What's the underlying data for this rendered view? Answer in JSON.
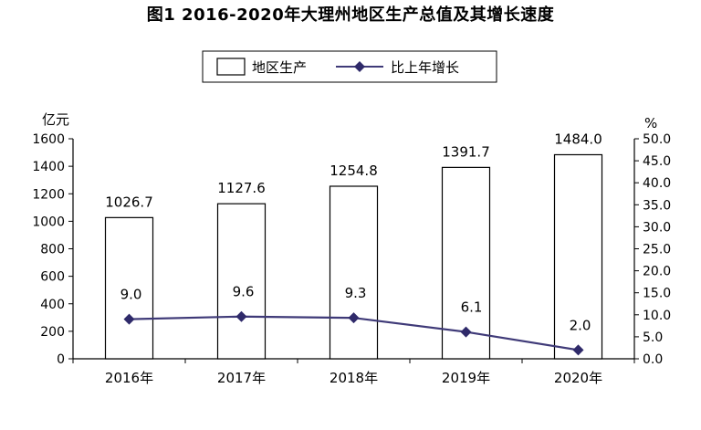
{
  "chart_data": {
    "type": "bar+line",
    "title": "图1  2016-2020年大理州地区生产总值及其增长速度",
    "categories": [
      "2016年",
      "2017年",
      "2018年",
      "2019年",
      "2020年"
    ],
    "series": [
      {
        "name": "地区生产",
        "type": "bar",
        "axis": "left",
        "values": [
          1026.7,
          1127.6,
          1254.8,
          1391.7,
          1484.0
        ],
        "labels": [
          "1026.7",
          "1127.6",
          "1254.8",
          "1391.7",
          "1484.0"
        ]
      },
      {
        "name": "比上年增长",
        "type": "line",
        "axis": "right",
        "values": [
          9.0,
          9.6,
          9.3,
          6.1,
          2.0
        ],
        "labels": [
          "9.0",
          "9.6",
          "9.3",
          "6.1",
          "2.0"
        ]
      }
    ],
    "left_axis": {
      "unit": "亿元",
      "ylim": [
        0,
        1600
      ],
      "ticks": [
        "0",
        "200",
        "400",
        "600",
        "800",
        "1000",
        "1200",
        "1400",
        "1600"
      ]
    },
    "right_axis": {
      "unit": "%",
      "ylim": [
        0,
        50
      ],
      "ticks": [
        "0.0",
        "5.0",
        "10.0",
        "15.0",
        "20.0",
        "25.0",
        "30.0",
        "35.0",
        "40.0",
        "45.0",
        "50.0"
      ]
    },
    "legend_position": "top-center",
    "grid": false,
    "colors": {
      "bar_fill": "#ffffff",
      "bar_stroke": "#000000",
      "line": "#3f3a78",
      "marker": "#2f2a6a"
    }
  }
}
